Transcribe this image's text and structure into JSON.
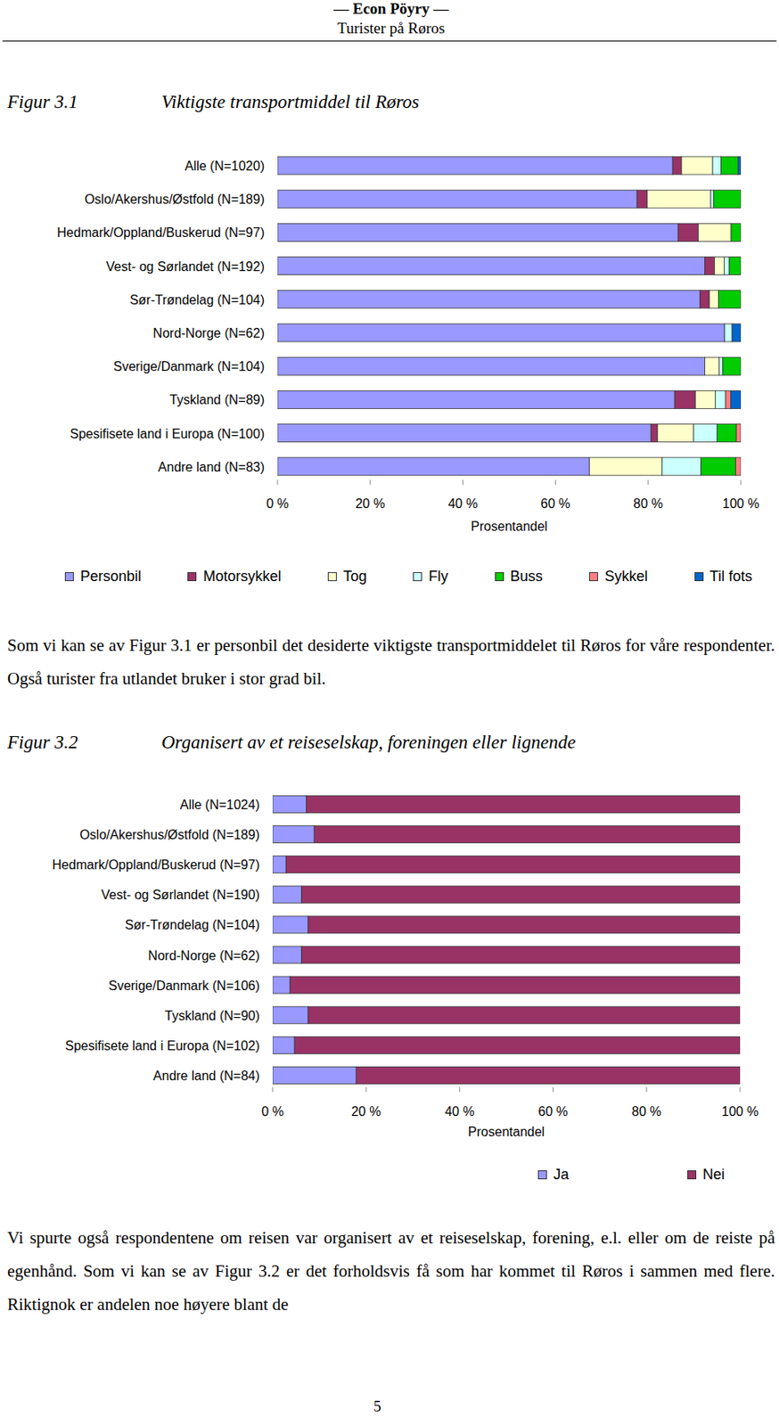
{
  "header": {
    "title": "— Econ Pöyry —",
    "subtitle": "Turister på Røros"
  },
  "figure_labels": [
    "Figur 3.1",
    "Figur 3.2"
  ],
  "chart_data": [
    {
      "type": "bar",
      "orientation": "horizontal",
      "stacked": true,
      "title": "Viktigste transportmiddel til Røros",
      "x_label": "Prosentandel",
      "legend": "bottom",
      "categories": [
        "Alle (N=1020)",
        "Oslo/Akershus/Østfold (N=189)",
        "Hedmark/Oppland/Buskerud (N=97)",
        "Vest- og Sørlandet (N=192)",
        "Sør-Trøndelag (N=104)",
        "Nord-Norge (N=62)",
        "Sverige/Danmark (N=104)",
        "Tyskland (N=89)",
        "Spesifisete land i Europa (N=100)",
        "Andre land (N=83)"
      ],
      "series": [
        {
          "name": "Personbil",
          "color": "#9999ff",
          "values": [
            85.3,
            77.6,
            86.5,
            92.2,
            91.2,
            96.5,
            92.2,
            85.7,
            80.6,
            67.3
          ]
        },
        {
          "name": "Motorsykkel",
          "color": "#993366",
          "values": [
            1.9,
            2.2,
            4.3,
            2.1,
            2.0,
            0,
            0,
            4.5,
            1.4,
            0
          ]
        },
        {
          "name": "Tog",
          "color": "#ffffcc",
          "values": [
            6.7,
            13.7,
            7.1,
            2.1,
            2.0,
            0,
            3.1,
            4.3,
            7.8,
            15.7
          ]
        },
        {
          "name": "Fly",
          "color": "#ccffff",
          "values": [
            1.8,
            0.6,
            0,
            1.1,
            0,
            1.6,
            0.8,
            2.2,
            5.1,
            8.4
          ]
        },
        {
          "name": "Buss",
          "color": "#00cc00",
          "values": [
            3.7,
            5.9,
            2.1,
            2.5,
            4.8,
            0,
            3.9,
            0,
            4.1,
            7.5
          ]
        },
        {
          "name": "Sykkel",
          "color": "#ff8080",
          "values": [
            0,
            0,
            0,
            0,
            0,
            0,
            0,
            1.1,
            1.0,
            1.1
          ]
        },
        {
          "name": "Til fots",
          "color": "#0066cc",
          "values": [
            0.6,
            0,
            0,
            0,
            0,
            1.9,
            0,
            2.2,
            0,
            0
          ]
        }
      ],
      "xlim": [
        0,
        100
      ],
      "xticks": [
        {
          "value": 0,
          "label": "0 %"
        },
        {
          "value": 20,
          "label": "20 %"
        },
        {
          "value": 40,
          "label": "40 %"
        },
        {
          "value": 60,
          "label": "60 %"
        },
        {
          "value": 80,
          "label": "80 %"
        },
        {
          "value": 100,
          "label": "100 %"
        }
      ]
    },
    {
      "type": "bar",
      "orientation": "horizontal",
      "stacked": true,
      "title": "Organisert av et reiseselskap, foreningen eller lignende",
      "x_label": "Prosentandel",
      "legend": "bottom",
      "categories": [
        "Alle (N=1024)",
        "Oslo/Akershus/Østfold (N=189)",
        "Hedmark/Oppland/Buskerud (N=97)",
        "Vest- og Sørlandet (N=190)",
        "Sør-Trøndelag (N=104)",
        "Nord-Norge (N=62)",
        "Sverige/Danmark (N=106)",
        "Tyskland (N=90)",
        "Spesifisete land i Europa (N=102)",
        "Andre land (N=84)"
      ],
      "series": [
        {
          "name": "Ja",
          "color": "#9999ff",
          "values": [
            7.2,
            8.9,
            2.9,
            6.2,
            7.6,
            6.2,
            3.7,
            7.6,
            4.7,
            17.9
          ]
        },
        {
          "name": "Nei",
          "color": "#993366",
          "values": [
            92.8,
            91.1,
            97.1,
            93.8,
            92.4,
            93.8,
            96.3,
            92.4,
            95.3,
            82.1
          ]
        }
      ],
      "xlim": [
        0,
        100
      ],
      "xticks": [
        {
          "value": 0,
          "label": "0 %"
        },
        {
          "value": 20,
          "label": "20 %"
        },
        {
          "value": 40,
          "label": "40 %"
        },
        {
          "value": 60,
          "label": "60 %"
        },
        {
          "value": 80,
          "label": "80 %"
        },
        {
          "value": 100,
          "label": "100 %"
        }
      ]
    }
  ],
  "paragraphs": [
    "Som vi kan se av Figur 3.1 er personbil det desiderte viktigste transportmiddelet til Røros for våre respondenter. Også turister fra utlandet bruker i stor grad bil.",
    "Vi spurte også respondentene om reisen var organisert av et reiseselskap, forening, e.l. eller om de reiste på egenhånd. Som vi kan se av Figur 3.2 er det forholdsvis få som har kommet til Røros i sammen med flere. Riktignok er andelen noe høyere blant de"
  ],
  "page_number": "5"
}
